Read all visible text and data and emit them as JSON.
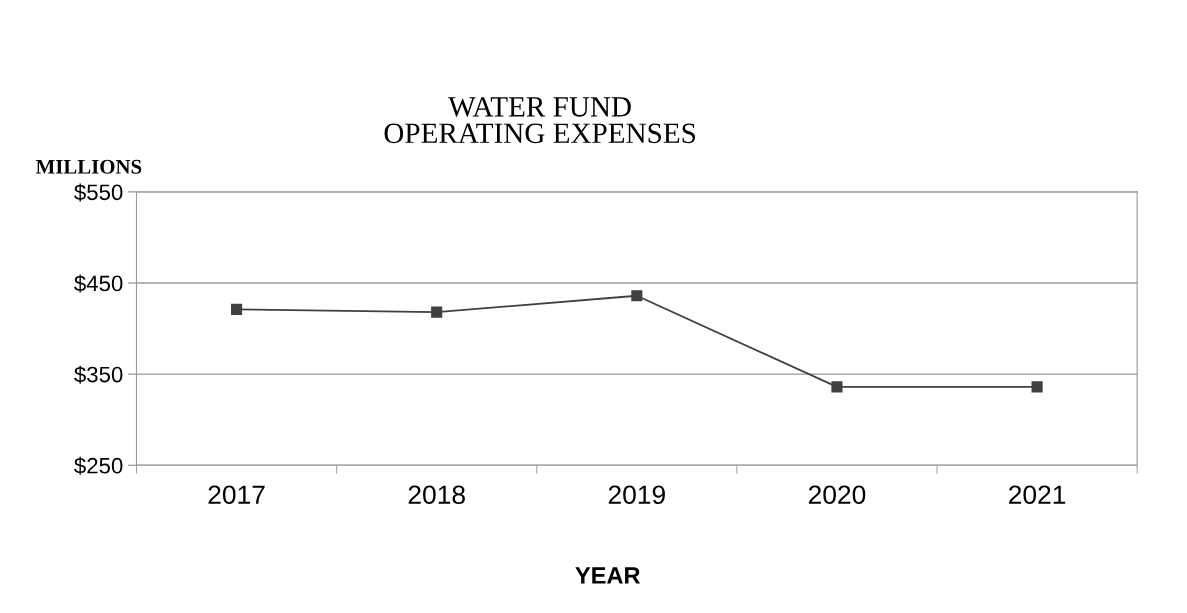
{
  "chart_data": {
    "type": "line",
    "title": "WATER FUND\nOPERATING EXPENSES",
    "ylabel": "MILLIONS",
    "xlabel": "YEAR",
    "categories": [
      "2017",
      "2018",
      "2019",
      "2020",
      "2021"
    ],
    "series": [
      {
        "color": "#404040",
        "values": [
          421,
          418,
          436,
          336,
          336
        ]
      }
    ],
    "ylim": [
      250,
      550
    ],
    "yticks": [
      {
        "value": 250,
        "label": "$250"
      },
      {
        "value": 350,
        "label": "$350"
      },
      {
        "value": 450,
        "label": "$450"
      },
      {
        "value": 550,
        "label": "$550"
      }
    ],
    "grid": "y",
    "marker": "square",
    "line_style": "solid",
    "legend": false
  }
}
